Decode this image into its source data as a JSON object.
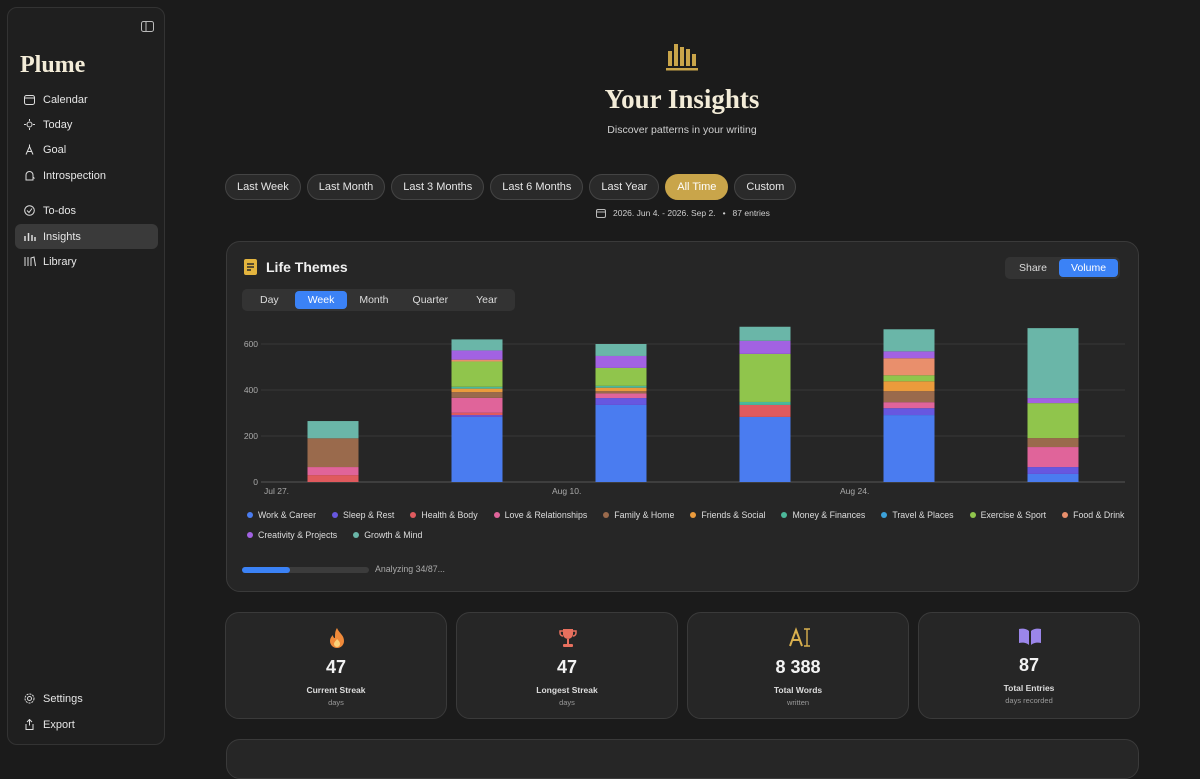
{
  "sidebar": {
    "brand": "Plume",
    "nav": [
      "Calendar",
      "Today",
      "Goal",
      "Introspection"
    ],
    "nav2": [
      "To-dos",
      "Insights",
      "Library"
    ],
    "footer": [
      "Settings",
      "Export"
    ]
  },
  "header": {
    "title": "Your Insights",
    "subtitle": "Discover patterns in your writing"
  },
  "filters": [
    "Last Week",
    "Last Month",
    "Last 3 Months",
    "Last 6 Months",
    "Last Year",
    "All Time",
    "Custom"
  ],
  "date_range": {
    "range": "2026. Jun 4. - 2026. Sep 2.",
    "entries": "87 entries"
  },
  "themes": {
    "title": "Life Themes",
    "modes": [
      "Share",
      "Volume"
    ],
    "periods": [
      "Day",
      "Week",
      "Month",
      "Quarter",
      "Year"
    ],
    "progress": "Analyzing 34/87..."
  },
  "chart_data": {
    "type": "stacked_bar",
    "categories": [
      "Jul 27.",
      null,
      "Aug 10.",
      null,
      "Aug 24.",
      null
    ],
    "ylim": [
      0,
      700
    ],
    "yticks": [
      0,
      200,
      400,
      600
    ],
    "grid": true,
    "series": [
      {
        "name": "Work & Career",
        "color": "#4a7cf0",
        "values": [
          0,
          283,
          335,
          283,
          291,
          35
        ]
      },
      {
        "name": "Sleep & Rest",
        "color": "#6757e0",
        "values": [
          0,
          8,
          30,
          0,
          30,
          30
        ]
      },
      {
        "name": "Health & Body",
        "color": "#e05a5e",
        "values": [
          30,
          10,
          0,
          52,
          0,
          0
        ]
      },
      {
        "name": "Love & Relationships",
        "color": "#e0649a",
        "values": [
          35,
          65,
          20,
          0,
          26,
          87
        ]
      },
      {
        "name": "Family & Home",
        "color": "#9a6a4c",
        "values": [
          125,
          25,
          10,
          0,
          48,
          39
        ]
      },
      {
        "name": "Friends & Social",
        "color": "#eb9b3c",
        "values": [
          0,
          15,
          15,
          0,
          43,
          0
        ]
      },
      {
        "name": "Money & Finances",
        "color": "#4cb89a",
        "values": [
          0,
          8,
          8,
          13,
          0,
          0
        ]
      },
      {
        "name": "Travel & Places",
        "color": "#3ca2da",
        "values": [
          0,
          0,
          0,
          0,
          0,
          0
        ]
      },
      {
        "name": "Exercise & Sport",
        "color": "#90c54c",
        "values": [
          0,
          110,
          78,
          209,
          26,
          152
        ]
      },
      {
        "name": "Food & Drink",
        "color": "#e98f6c",
        "values": [
          0,
          8,
          0,
          0,
          74,
          0
        ]
      },
      {
        "name": "Creativity & Projects",
        "color": "#a262e2",
        "values": [
          0,
          40,
          52,
          57,
          30,
          22
        ]
      },
      {
        "name": "Growth & Mind",
        "color": "#6ab6a8",
        "values": [
          75,
          48,
          52,
          61,
          96,
          304
        ]
      }
    ]
  },
  "stats": [
    {
      "value": "47",
      "label": "Current Streak",
      "sub": "days"
    },
    {
      "value": "47",
      "label": "Longest Streak",
      "sub": "days"
    },
    {
      "value": "8 388",
      "label": "Total Words",
      "sub": "written"
    },
    {
      "value": "87",
      "label": "Total Entries",
      "sub": "days recorded"
    }
  ]
}
